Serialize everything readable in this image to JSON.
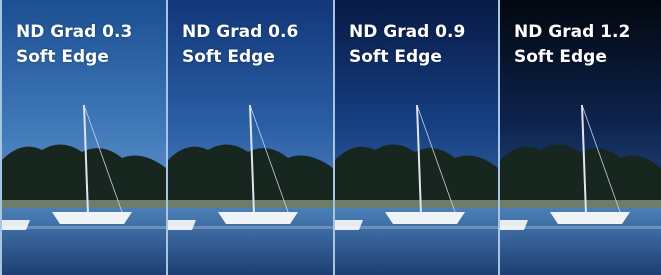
{
  "panels": [
    {
      "title": "ND Grad 0.3",
      "subtitle": "Soft Edge"
    },
    {
      "title": "ND Grad 0.6",
      "subtitle": "Soft Edge"
    },
    {
      "title": "ND Grad 0.9",
      "subtitle": "Soft Edge"
    },
    {
      "title": "ND Grad 1.2",
      "subtitle": "Soft Edge"
    }
  ]
}
